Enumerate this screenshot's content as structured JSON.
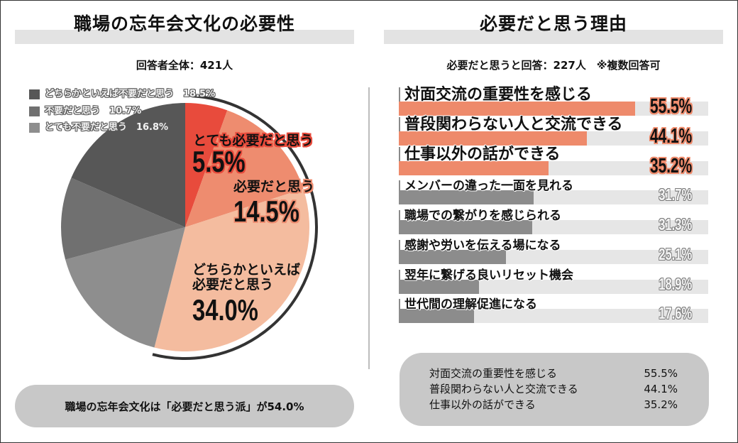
{
  "left_panel": {
    "title": "職場の忘年会文化の必要性",
    "subtitle": "回答者全体：421人",
    "legend": [
      {
        "label": "どちらかといえば不要だと思う　18.5%",
        "color": "#575757"
      },
      {
        "label": "不要だと思う　10.7%",
        "color": "#707070"
      },
      {
        "label": "とても不要だと思う　16.8%",
        "color": "#8e8e8e"
      }
    ],
    "pie_labels": {
      "very_needed": {
        "label": "とても必要だと思う",
        "value": "5.5%"
      },
      "needed": {
        "label": "必要だと思う",
        "value": "14.5%"
      },
      "somewhat_needed": {
        "label_line1": "どちらかといえば",
        "label_line2": "必要だと思う",
        "value": "34.0%"
      }
    },
    "summary": "職場の忘年会文化は「必要だと思う派」が54.0%"
  },
  "right_panel": {
    "title": "必要だと思う理由",
    "subtitle": "必要だと思うと回答：227人　※複数回答可",
    "reasons": [
      {
        "label": "対面交流の重要性を感じる",
        "value_text": "55.5%"
      },
      {
        "label": "普段関わらない人と交流できる",
        "value_text": "44.1%"
      },
      {
        "label": "仕事以外の話ができる",
        "value_text": "35.2%"
      },
      {
        "label": "メンバーの違った一面を見れる",
        "value_text": "31.7%"
      },
      {
        "label": "職場での繋がりを感じられる",
        "value_text": "31.3%"
      },
      {
        "label": "感謝や労いを伝える場になる",
        "value_text": "25.1%"
      },
      {
        "label": "翌年に繋げる良いリセット機会",
        "value_text": "18.9%"
      },
      {
        "label": "世代間の理解促進になる",
        "value_text": "17.6%"
      }
    ],
    "summary": [
      {
        "label": "対面交流の重要性を感じる",
        "value_text": "55.5%"
      },
      {
        "label": "普段関わらない人と交流できる",
        "value_text": "44.1%"
      },
      {
        "label": "仕事以外の話ができる",
        "value_text": "35.2%"
      }
    ]
  },
  "colors": {
    "very_needed": "#e84b3c",
    "needed": "#ee8c6f",
    "somewhat_needed": "#f4bc9f",
    "very_unneeded": "#8e8e8e",
    "unneeded": "#707070",
    "somewhat_unneeded": "#575757",
    "top_bar": "#ee8a6b",
    "other_bar": "#8c8c8c",
    "track": "#e6e6e6",
    "highlight_arc": "#333333"
  },
  "chart_data": [
    {
      "type": "pie",
      "title": "職場の忘年会文化の必要性",
      "subtitle": "回答者全体：421人",
      "categories": [
        "とても必要だと思う",
        "必要だと思う",
        "どちらかといえば必要だと思う",
        "とても不要だと思う",
        "不要だと思う",
        "どちらかといえば不要だと思う"
      ],
      "values": [
        5.5,
        14.5,
        34.0,
        16.8,
        10.7,
        18.5
      ],
      "colors": [
        "#e84b3c",
        "#ee8c6f",
        "#f4bc9f",
        "#8e8e8e",
        "#707070",
        "#575757"
      ],
      "start_angle": "12 o'clock, clockwise",
      "highlight": {
        "label": "必要だと思う派",
        "value": 54.0,
        "categories": [
          "とても必要だと思う",
          "必要だと思う",
          "どちらかといえば必要だと思う"
        ]
      },
      "legend_position": "top-left"
    },
    {
      "type": "bar",
      "orientation": "horizontal",
      "title": "必要だと思う理由",
      "subtitle": "必要だと思うと回答：227人　※複数回答可",
      "categories": [
        "対面交流の重要性を感じる",
        "普段関わらない人と交流できる",
        "仕事以外の話ができる",
        "メンバーの違った一面を見れる",
        "職場での繋がりを感じられる",
        "感謝や労いを伝える場になる",
        "翌年に繋げる良いリセット機会",
        "世代間の理解促進になる"
      ],
      "values": [
        55.5,
        44.1,
        35.2,
        31.7,
        31.3,
        25.1,
        18.9,
        17.6
      ],
      "unit": "%",
      "highlighted_top_n": 3,
      "xlabel": "",
      "ylabel": ""
    }
  ]
}
